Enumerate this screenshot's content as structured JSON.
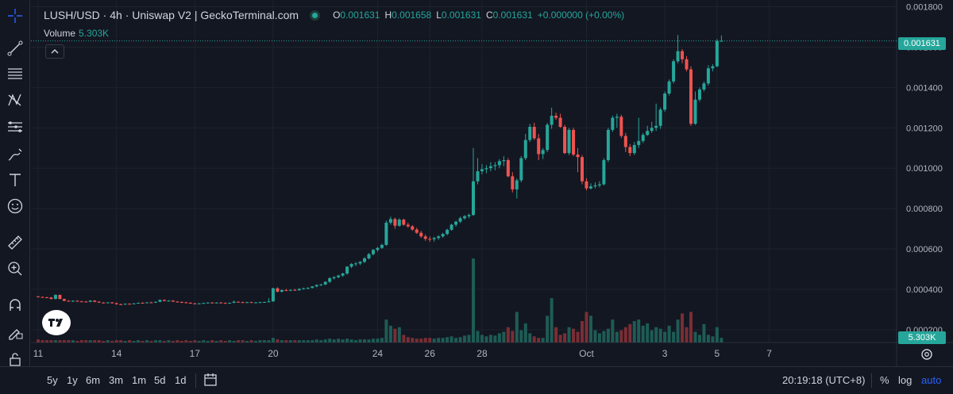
{
  "header": {
    "title": "LUSH/USD · 4h · Uniswap V2 | GeckoTerminal.com",
    "ohlc": {
      "o_label": "O",
      "o": "0.001631",
      "h_label": "H",
      "h": "0.001658",
      "l_label": "L",
      "l": "0.001631",
      "c_label": "C",
      "c": "0.001631",
      "change": "+0.000000 (+0.00%)"
    }
  },
  "volume": {
    "label": "Volume",
    "value": "5.303K"
  },
  "price_tag": "0.001631",
  "volume_tag": "5.303K",
  "colors": {
    "up": "#26a69a",
    "down": "#ef5350",
    "up_vol": "#1e5c55",
    "down_vol": "#7a2e35",
    "bg": "#131722",
    "grid": "#1e222d",
    "text": "#b2b5be"
  },
  "toolbar_icons": [
    "crosshair-icon",
    "trend-line-icon",
    "horizontal-lines-icon",
    "pattern-icon",
    "fib-icon",
    "brush-icon",
    "text-icon",
    "emoji-icon",
    "ruler-icon",
    "zoom-icon",
    "magnet-icon",
    "lock-draw-icon",
    "unlock-icon",
    "eye-icon"
  ],
  "bottom": {
    "ranges": [
      "5y",
      "1y",
      "6m",
      "3m",
      "1m",
      "5d",
      "1d"
    ],
    "time": "20:19:18 (UTC+8)",
    "percent": "%",
    "log": "log",
    "auto": "auto"
  },
  "chart_data": {
    "type": "candlestick",
    "title": "LUSH/USD · 4h · Uniswap V2",
    "y_ticks": [
      "0.001800",
      "0.001600",
      "0.001400",
      "0.001200",
      "0.001000",
      "0.000800",
      "0.000600",
      "0.000400",
      "0.000200"
    ],
    "ylim": [
      0.00016,
      0.00181
    ],
    "x_ticks": [
      "11",
      "14",
      "17",
      "20",
      "24",
      "26",
      "28",
      "Oct",
      "3",
      "5",
      "7"
    ],
    "x_tick_candle_index": [
      0,
      18,
      36,
      54,
      78,
      90,
      102,
      126,
      144,
      156,
      168
    ],
    "grid": true,
    "candles": [
      [
        0.000365,
        0.000366,
        0.00036,
        0.000362
      ],
      [
        0.000362,
        0.000364,
        0.000358,
        0.00036
      ],
      [
        0.00036,
        0.000363,
        0.000357,
        0.000359
      ],
      [
        0.000359,
        0.000362,
        0.00035,
        0.000352
      ],
      [
        0.000352,
        0.000375,
        0.00035,
        0.000372
      ],
      [
        0.000372,
        0.000374,
        0.00035,
        0.000352
      ],
      [
        0.000352,
        0.000354,
        0.00034,
        0.000343
      ],
      [
        0.000343,
        0.000346,
        0.000338,
        0.00034
      ],
      [
        0.00034,
        0.000345,
        0.000337,
        0.000343
      ],
      [
        0.000343,
        0.000346,
        0.000338,
        0.00034
      ],
      [
        0.00034,
        0.000343,
        0.000336,
        0.000339
      ],
      [
        0.000339,
        0.000342,
        0.000335,
        0.000338
      ],
      [
        0.000338,
        0.000346,
        0.000336,
        0.000344
      ],
      [
        0.000344,
        0.000346,
        0.000336,
        0.000338
      ],
      [
        0.000338,
        0.000342,
        0.000333,
        0.000334
      ],
      [
        0.000334,
        0.000337,
        0.00033,
        0.000332
      ],
      [
        0.000332,
        0.000336,
        0.00033,
        0.000335
      ],
      [
        0.000335,
        0.000337,
        0.000329,
        0.000331
      ],
      [
        0.000331,
        0.000334,
        0.000324,
        0.000326
      ],
      [
        0.000326,
        0.000329,
        0.000322,
        0.000325
      ],
      [
        0.000325,
        0.00033,
        0.000323,
        0.000328
      ],
      [
        0.000328,
        0.000331,
        0.000325,
        0.000327
      ],
      [
        0.000327,
        0.000332,
        0.000326,
        0.00033
      ],
      [
        0.00033,
        0.000334,
        0.000328,
        0.000333
      ],
      [
        0.000333,
        0.000336,
        0.00033,
        0.000332
      ],
      [
        0.000332,
        0.000336,
        0.00033,
        0.000335
      ],
      [
        0.000335,
        0.000338,
        0.000332,
        0.000334
      ],
      [
        0.000334,
        0.00034,
        0.000332,
        0.000338
      ],
      [
        0.000338,
        0.00035,
        0.000336,
        0.000347
      ],
      [
        0.000347,
        0.00035,
        0.00034,
        0.000342
      ],
      [
        0.000342,
        0.000346,
        0.000339,
        0.000344
      ],
      [
        0.000344,
        0.000346,
        0.000337,
        0.000339
      ],
      [
        0.000339,
        0.000342,
        0.000334,
        0.000337
      ],
      [
        0.000337,
        0.00034,
        0.000332,
        0.000335
      ],
      [
        0.000335,
        0.000338,
        0.000331,
        0.000333
      ],
      [
        0.000333,
        0.000336,
        0.000328,
        0.00033
      ],
      [
        0.00033,
        0.000333,
        0.000326,
        0.000328
      ],
      [
        0.000328,
        0.000332,
        0.000326,
        0.00033
      ],
      [
        0.00033,
        0.000334,
        0.000328,
        0.000332
      ],
      [
        0.000332,
        0.000336,
        0.00033,
        0.000334
      ],
      [
        0.000334,
        0.000337,
        0.000331,
        0.000333
      ],
      [
        0.000333,
        0.000336,
        0.00033,
        0.000334
      ],
      [
        0.000334,
        0.000337,
        0.000331,
        0.000332
      ],
      [
        0.000332,
        0.000335,
        0.000329,
        0.000331
      ],
      [
        0.000331,
        0.000334,
        0.000328,
        0.000333
      ],
      [
        0.000333,
        0.000345,
        0.000331,
        0.000338
      ],
      [
        0.000338,
        0.000341,
        0.000334,
        0.000336
      ],
      [
        0.000336,
        0.000339,
        0.000333,
        0.000335
      ],
      [
        0.000335,
        0.000338,
        0.000332,
        0.000336
      ],
      [
        0.000336,
        0.000339,
        0.000333,
        0.000334
      ],
      [
        0.000334,
        0.000337,
        0.000331,
        0.000335
      ],
      [
        0.000335,
        0.000338,
        0.000332,
        0.000336
      ],
      [
        0.000336,
        0.000339,
        0.000333,
        0.000337
      ],
      [
        0.000337,
        0.000356,
        0.000335,
        0.00034
      ],
      [
        0.00034,
        0.000408,
        0.000338,
        0.000405
      ],
      [
        0.000405,
        0.00041,
        0.000385,
        0.000388
      ],
      [
        0.000388,
        0.0004,
        0.000384,
        0.000396
      ],
      [
        0.000396,
        0.000402,
        0.00039,
        0.000394
      ],
      [
        0.000394,
        0.0004,
        0.00039,
        0.000397
      ],
      [
        0.000397,
        0.000402,
        0.000392,
        0.000395
      ],
      [
        0.000395,
        0.000405,
        0.000393,
        0.000402
      ],
      [
        0.000402,
        0.000408,
        0.000398,
        0.000405
      ],
      [
        0.000405,
        0.00041,
        0.0004,
        0.000407
      ],
      [
        0.000407,
        0.000416,
        0.000404,
        0.000414
      ],
      [
        0.000414,
        0.000425,
        0.00041,
        0.000421
      ],
      [
        0.000421,
        0.000427,
        0.000416,
        0.000424
      ],
      [
        0.000424,
        0.00044,
        0.00042,
        0.000437
      ],
      [
        0.000437,
        0.00046,
        0.000432,
        0.000455
      ],
      [
        0.000455,
        0.000465,
        0.000448,
        0.00046
      ],
      [
        0.00046,
        0.000472,
        0.000455,
        0.000468
      ],
      [
        0.000468,
        0.000482,
        0.000462,
        0.000478
      ],
      [
        0.000478,
        0.000515,
        0.000472,
        0.000512
      ],
      [
        0.000512,
        0.00053,
        0.000505,
        0.000525
      ],
      [
        0.000525,
        0.000535,
        0.000515,
        0.000528
      ],
      [
        0.000528,
        0.00054,
        0.00052,
        0.000536
      ],
      [
        0.000536,
        0.00056,
        0.00053,
        0.000553
      ],
      [
        0.000553,
        0.00058,
        0.000548,
        0.000574
      ],
      [
        0.000574,
        0.0006,
        0.000568,
        0.000595
      ],
      [
        0.000595,
        0.00061,
        0.000586,
        0.000605
      ],
      [
        0.000605,
        0.000625,
        0.0006,
        0.00062
      ],
      [
        0.00062,
        0.00074,
        0.000615,
        0.00073
      ],
      [
        0.00073,
        0.00076,
        0.00072,
        0.000748
      ],
      [
        0.000748,
        0.000755,
        0.0007,
        0.000715
      ],
      [
        0.000715,
        0.000752,
        0.00071,
        0.000745
      ],
      [
        0.000745,
        0.00075,
        0.000715,
        0.00072
      ],
      [
        0.00072,
        0.00073,
        0.000705,
        0.000712
      ],
      [
        0.000712,
        0.000718,
        0.00069,
        0.000696
      ],
      [
        0.000696,
        0.000705,
        0.000675,
        0.00068
      ],
      [
        0.00068,
        0.00069,
        0.000655,
        0.000662
      ],
      [
        0.000662,
        0.000672,
        0.00064,
        0.00065
      ],
      [
        0.00065,
        0.000662,
        0.000635,
        0.000648
      ],
      [
        0.000648,
        0.00066,
        0.000636,
        0.000654
      ],
      [
        0.000654,
        0.000668,
        0.000645,
        0.000662
      ],
      [
        0.000662,
        0.00068,
        0.000655,
        0.000674
      ],
      [
        0.000674,
        0.0007,
        0.000668,
        0.000695
      ],
      [
        0.000695,
        0.000725,
        0.00069,
        0.00072
      ],
      [
        0.00072,
        0.00074,
        0.00071,
        0.000735
      ],
      [
        0.000735,
        0.00076,
        0.000728,
        0.000752
      ],
      [
        0.000752,
        0.000768,
        0.000745,
        0.000762
      ],
      [
        0.000762,
        0.000775,
        0.000752,
        0.000768
      ],
      [
        0.000768,
        0.0011,
        0.000765,
        0.000935
      ],
      [
        0.000935,
        0.00105,
        0.00092,
        0.000985
      ],
      [
        0.000985,
        0.00102,
        0.00097,
        0.000995
      ],
      [
        0.000995,
        0.001015,
        0.000975,
        0.001
      ],
      [
        0.001,
        0.00103,
        0.000985,
        0.00101
      ],
      [
        0.00101,
        0.00103,
        0.00099,
        0.001015
      ],
      [
        0.001015,
        0.001045,
        0.001,
        0.001035
      ],
      [
        0.001035,
        0.00106,
        0.00101,
        0.00104
      ],
      [
        0.00104,
        0.00105,
        0.000955,
        0.00096
      ],
      [
        0.00096,
        0.00098,
        0.00088,
        0.000895
      ],
      [
        0.000895,
        0.00095,
        0.00085,
        0.00094
      ],
      [
        0.00094,
        0.00106,
        0.00093,
        0.00105
      ],
      [
        0.00105,
        0.00117,
        0.00104,
        0.00114
      ],
      [
        0.00114,
        0.00122,
        0.00113,
        0.001205
      ],
      [
        0.001205,
        0.001225,
        0.00114,
        0.001148
      ],
      [
        0.001148,
        0.00117,
        0.00104,
        0.00107
      ],
      [
        0.00107,
        0.0011,
        0.001045,
        0.00109
      ],
      [
        0.00109,
        0.001225,
        0.00108,
        0.001215
      ],
      [
        0.001215,
        0.0013,
        0.001195,
        0.00126
      ],
      [
        0.00126,
        0.001275,
        0.00124,
        0.00125
      ],
      [
        0.00125,
        0.00127,
        0.0012,
        0.001205
      ],
      [
        0.001205,
        0.001215,
        0.00107,
        0.001075
      ],
      [
        0.001075,
        0.0012,
        0.001065,
        0.00119
      ],
      [
        0.00119,
        0.0012,
        0.00106,
        0.001068
      ],
      [
        0.001068,
        0.0011,
        0.00098,
        0.001055
      ],
      [
        0.001055,
        0.001065,
        0.00092,
        0.000935
      ],
      [
        0.000935,
        0.00095,
        0.00089,
        0.0009
      ],
      [
        0.0009,
        0.000925,
        0.000895,
        0.00091
      ],
      [
        0.00091,
        0.00093,
        0.0009,
        0.000915
      ],
      [
        0.000915,
        0.000935,
        0.000905,
        0.00092
      ],
      [
        0.00092,
        0.00105,
        0.000915,
        0.00104
      ],
      [
        0.00104,
        0.0012,
        0.00103,
        0.00119
      ],
      [
        0.00119,
        0.00126,
        0.00118,
        0.00125
      ],
      [
        0.00125,
        0.00127,
        0.0012,
        0.001255
      ],
      [
        0.001255,
        0.001265,
        0.00115,
        0.00116
      ],
      [
        0.00116,
        0.001175,
        0.00108,
        0.001105
      ],
      [
        0.001105,
        0.00112,
        0.00106,
        0.001075
      ],
      [
        0.001075,
        0.00113,
        0.001065,
        0.001115
      ],
      [
        0.001115,
        0.00125,
        0.0011,
        0.001135
      ],
      [
        0.001135,
        0.001175,
        0.001125,
        0.001165
      ],
      [
        0.001165,
        0.00121,
        0.00116,
        0.001185
      ],
      [
        0.001185,
        0.00123,
        0.001175,
        0.0012
      ],
      [
        0.0012,
        0.00132,
        0.001185,
        0.00121
      ],
      [
        0.00121,
        0.0013,
        0.001195,
        0.00129
      ],
      [
        0.00129,
        0.00138,
        0.00128,
        0.00137
      ],
      [
        0.00137,
        0.00144,
        0.00136,
        0.00143
      ],
      [
        0.00143,
        0.00154,
        0.00142,
        0.00153
      ],
      [
        0.00153,
        0.00166,
        0.00152,
        0.00158
      ],
      [
        0.00158,
        0.00159,
        0.00152,
        0.00154
      ],
      [
        0.00154,
        0.001555,
        0.00148,
        0.00149
      ],
      [
        0.00149,
        0.001505,
        0.00121,
        0.00122
      ],
      [
        0.00122,
        0.00138,
        0.001215,
        0.00134
      ],
      [
        0.00134,
        0.0014,
        0.00133,
        0.00139
      ],
      [
        0.00139,
        0.00143,
        0.00138,
        0.00142
      ],
      [
        0.00142,
        0.00151,
        0.00141,
        0.001495
      ],
      [
        0.001495,
        0.001515,
        0.00148,
        0.001505
      ],
      [
        0.001505,
        0.00164,
        0.0015,
        0.001631
      ],
      [
        0.001631,
        0.001658,
        0.001631,
        0.001631
      ]
    ],
    "volumes": [
      4,
      3,
      3,
      3,
      3,
      3,
      3,
      3,
      3,
      2,
      3,
      3,
      3,
      3,
      3,
      2,
      3,
      2,
      3,
      3,
      2,
      3,
      2,
      3,
      2,
      3,
      2,
      3,
      3,
      2,
      3,
      2,
      3,
      2,
      3,
      2,
      3,
      2,
      3,
      2,
      3,
      2,
      3,
      2,
      3,
      2,
      3,
      3,
      2,
      3,
      2,
      3,
      3,
      3,
      6,
      4,
      3,
      3,
      3,
      3,
      3,
      3,
      3,
      3,
      4,
      3,
      4,
      5,
      4,
      5,
      4,
      5,
      4,
      3,
      4,
      4,
      4,
      5,
      5,
      6,
      30,
      22,
      18,
      20,
      10,
      7,
      6,
      5,
      5,
      6,
      6,
      5,
      6,
      6,
      7,
      8,
      6,
      7,
      9,
      10,
      110,
      15,
      10,
      8,
      10,
      9,
      12,
      14,
      20,
      15,
      40,
      16,
      25,
      12,
      8,
      6,
      6,
      35,
      58,
      20,
      10,
      12,
      20,
      18,
      14,
      28,
      40,
      35,
      16,
      12,
      15,
      18,
      30,
      14,
      16,
      20,
      24,
      28,
      30,
      22,
      25,
      16,
      20,
      18,
      14,
      22,
      14,
      30,
      38,
      20,
      40,
      14,
      10,
      24,
      10,
      8,
      20,
      6
    ]
  }
}
